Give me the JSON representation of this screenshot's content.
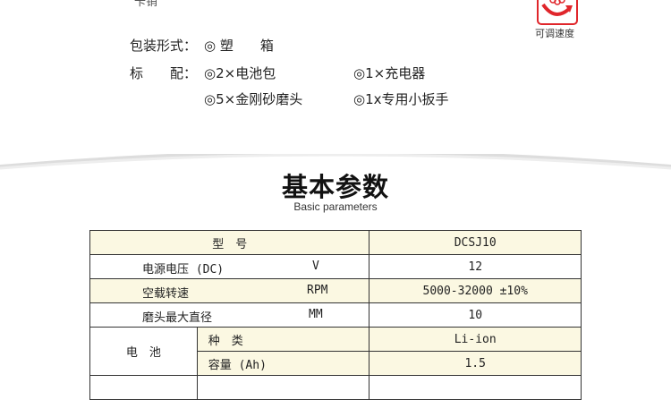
{
  "top_cut_text": "卡销",
  "speed_feature": {
    "icon": "adjustable-speed-icon",
    "label": "可调速度",
    "color": "#e0262b"
  },
  "packaging": {
    "label": "包装形式：",
    "value": "◎ 塑　　箱"
  },
  "standard": {
    "label": "标　　配：",
    "items": [
      "◎2×电池包",
      "◎1×充电器",
      "◎5×金刚砂磨头",
      "◎1x专用小扳手"
    ]
  },
  "section": {
    "title": "基本参数",
    "subtitle": "Basic parameters"
  },
  "table": {
    "model_label": "型　号",
    "model_value": "DCSJ10",
    "rows": [
      {
        "label": "电源电压 (DC)",
        "unit": "V",
        "value": "12"
      },
      {
        "label": "空载转速",
        "unit": "RPM",
        "value": "5000-32000 ±10%"
      },
      {
        "label": "磨头最大直径",
        "unit": "MM",
        "value": "10"
      }
    ],
    "battery": {
      "label": "电　池",
      "rows": [
        {
          "label": "种　类",
          "value": "Li-ion"
        },
        {
          "label": "容量 (Ah)",
          "value": "1.5"
        }
      ]
    }
  },
  "colors": {
    "row_highlight": "#fbf8e2"
  }
}
